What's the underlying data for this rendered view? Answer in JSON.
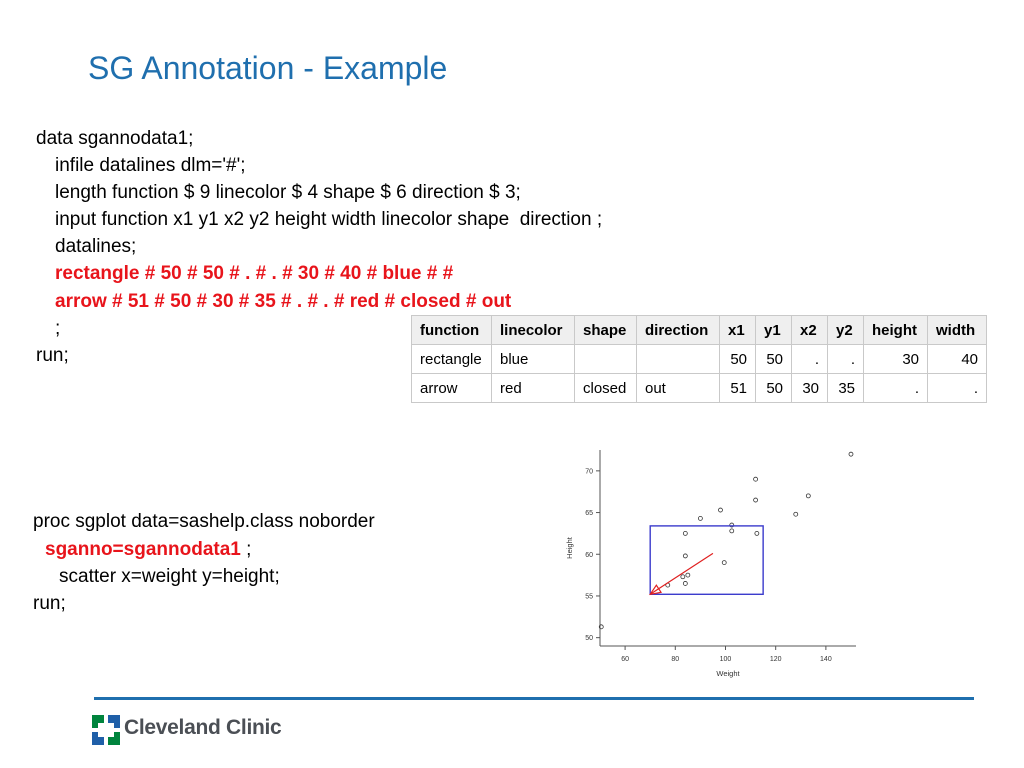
{
  "title": "SG Annotation - Example",
  "code_block_1": [
    {
      "text": "data sgannodata1;",
      "style": "plain"
    },
    {
      "text": "infile datalines dlm='#';",
      "style": "plain"
    },
    {
      "text": "length function $ 9 linecolor $ 4 shape $ 6 direction $ 3;",
      "style": "plain"
    },
    {
      "text": "input function x1 y1 x2 y2 height width linecolor shape  direction ;",
      "style": "plain"
    },
    {
      "text": "datalines;",
      "style": "plain"
    },
    {
      "text": "rectangle # 50 # 50 # . # . # 30 # 40 # blue # #",
      "style": "red"
    },
    {
      "text": "arrow # 51 # 50 # 30 # 35 # . # . # red # closed # out",
      "style": "red"
    },
    {
      "text": ";",
      "style": "plain"
    },
    {
      "text": "run;",
      "style": "plain"
    }
  ],
  "code_block_2": {
    "line1": "proc sgplot data=sashelp.class noborder",
    "line2_red": "sganno=sgannodata1",
    "line2_rest": " ;",
    "line3": "scatter x=weight y=height;",
    "line4": "run;"
  },
  "table": {
    "headers": [
      "function",
      "linecolor",
      "shape",
      "direction",
      "x1",
      "y1",
      "x2",
      "y2",
      "height",
      "width"
    ],
    "rows": [
      [
        "rectangle",
        "blue",
        "",
        "",
        "50",
        "50",
        ".",
        ".",
        "30",
        "40"
      ],
      [
        "arrow",
        "red",
        "closed",
        "out",
        "51",
        "50",
        "30",
        "35",
        ".",
        "."
      ]
    ]
  },
  "chart_data": {
    "type": "scatter",
    "xlabel": "Weight",
    "ylabel": "Height",
    "xticks": [
      60,
      80,
      100,
      120,
      140
    ],
    "yticks": [
      50,
      55,
      60,
      65,
      70
    ],
    "xlim": [
      50,
      152
    ],
    "ylim": [
      49,
      72.5
    ],
    "points": [
      {
        "x": 50.5,
        "y": 51.3
      },
      {
        "x": 77,
        "y": 56.3
      },
      {
        "x": 83,
        "y": 57.3
      },
      {
        "x": 84,
        "y": 62.5
      },
      {
        "x": 84,
        "y": 59.8
      },
      {
        "x": 84,
        "y": 56.5
      },
      {
        "x": 85,
        "y": 57.5
      },
      {
        "x": 90,
        "y": 64.3
      },
      {
        "x": 98,
        "y": 65.3
      },
      {
        "x": 99.5,
        "y": 59.0
      },
      {
        "x": 102.5,
        "y": 63.5
      },
      {
        "x": 102.5,
        "y": 62.8
      },
      {
        "x": 112,
        "y": 69.0
      },
      {
        "x": 112,
        "y": 66.5
      },
      {
        "x": 112.5,
        "y": 62.5
      },
      {
        "x": 128,
        "y": 64.8
      },
      {
        "x": 133,
        "y": 67.0
      },
      {
        "x": 150,
        "y": 72.0
      }
    ],
    "annotations": [
      {
        "function": "rectangle",
        "linecolor": "#3b3bcc",
        "x1": 70,
        "y1": 55.2,
        "x2": 115,
        "y2": 63.4
      },
      {
        "function": "arrow",
        "linecolor": "#e02020",
        "x1": 95,
        "y1": 60.1,
        "x2": 70,
        "y2": 55.2
      }
    ],
    "grid": false
  },
  "footer": {
    "logo_text": "Cleveland Clinic"
  },
  "colors": {
    "title": "#1f6fae",
    "highlight": "#e8141b",
    "rule": "#1f6fae",
    "logo_green": "#00843d",
    "logo_blue": "#1f5fa8"
  }
}
